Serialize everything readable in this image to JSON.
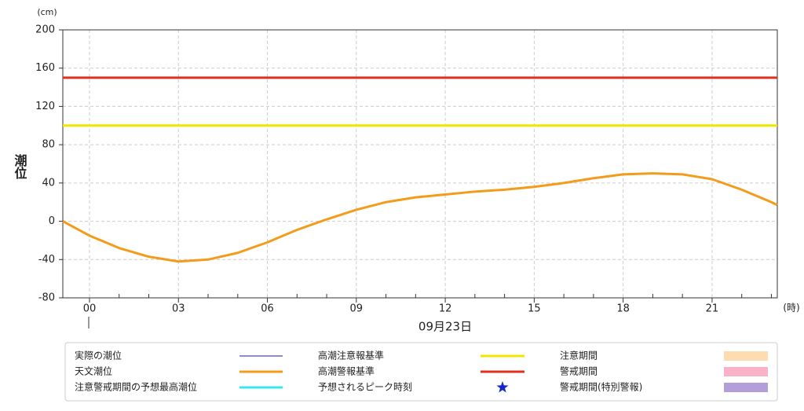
{
  "chart_data": {
    "type": "line",
    "y_unit": "(cm)",
    "x_unit": "(時)",
    "ylabel": "潮位",
    "date_label": "09月23日",
    "x": [
      -0.9,
      0,
      1,
      2,
      3,
      4,
      5,
      6,
      7,
      8,
      9,
      10,
      11,
      12,
      13,
      14,
      15,
      16,
      17,
      18,
      19,
      20,
      21,
      22,
      23,
      23.2
    ],
    "series": [
      {
        "name": "天文潮位",
        "color": "#f39c1c",
        "values": [
          0,
          -15,
          -28,
          -37,
          -42,
          -40,
          -33,
          -22,
          -9,
          2,
          12,
          20,
          25,
          28,
          31,
          33,
          36,
          40,
          45,
          49,
          50,
          49,
          44,
          33,
          20,
          17
        ]
      }
    ],
    "reference_lines": [
      {
        "name": "高潮注意報基準",
        "value": 100,
        "color": "#f2e600"
      },
      {
        "name": "高潮警報基準",
        "value": 150,
        "color": "#e0301e"
      }
    ],
    "xlim": [
      -0.9,
      23.2
    ],
    "ylim": [
      -80,
      200
    ],
    "xticks": [
      {
        "value": 0,
        "label": "00"
      },
      {
        "value": 3,
        "label": "03"
      },
      {
        "value": 6,
        "label": "06"
      },
      {
        "value": 9,
        "label": "09"
      },
      12,
      15,
      18,
      21
    ],
    "xminorticks": [
      1,
      2,
      4,
      5,
      7,
      8,
      10,
      11,
      13,
      14,
      16,
      17,
      19,
      20,
      22,
      23
    ],
    "yticks": [
      -80,
      -40,
      0,
      40,
      80,
      120,
      160,
      200
    ],
    "grid": true,
    "legend": [
      {
        "name": "実際の潮位",
        "symbol": "thin-line",
        "color": "#1c1c8c"
      },
      {
        "name": "天文潮位",
        "symbol": "line",
        "color": "#f39c1c"
      },
      {
        "name": "注意警戒期間の予想最高潮位",
        "symbol": "line",
        "color": "#35e8f0"
      },
      {
        "name": "高潮注意報基準",
        "symbol": "line",
        "color": "#f2e600"
      },
      {
        "name": "高潮警報基準",
        "symbol": "line",
        "color": "#e0301e"
      },
      {
        "name": "予想されるピーク時刻",
        "symbol": "star",
        "color": "#1428c8"
      },
      {
        "name": "注意期間",
        "symbol": "rect",
        "color": "#fddcb0"
      },
      {
        "name": "警戒期間",
        "symbol": "rect",
        "color": "#f9b2c8"
      },
      {
        "name": "警戒期間(特別警報)",
        "symbol": "rect",
        "color": "#b39ddb"
      }
    ]
  }
}
